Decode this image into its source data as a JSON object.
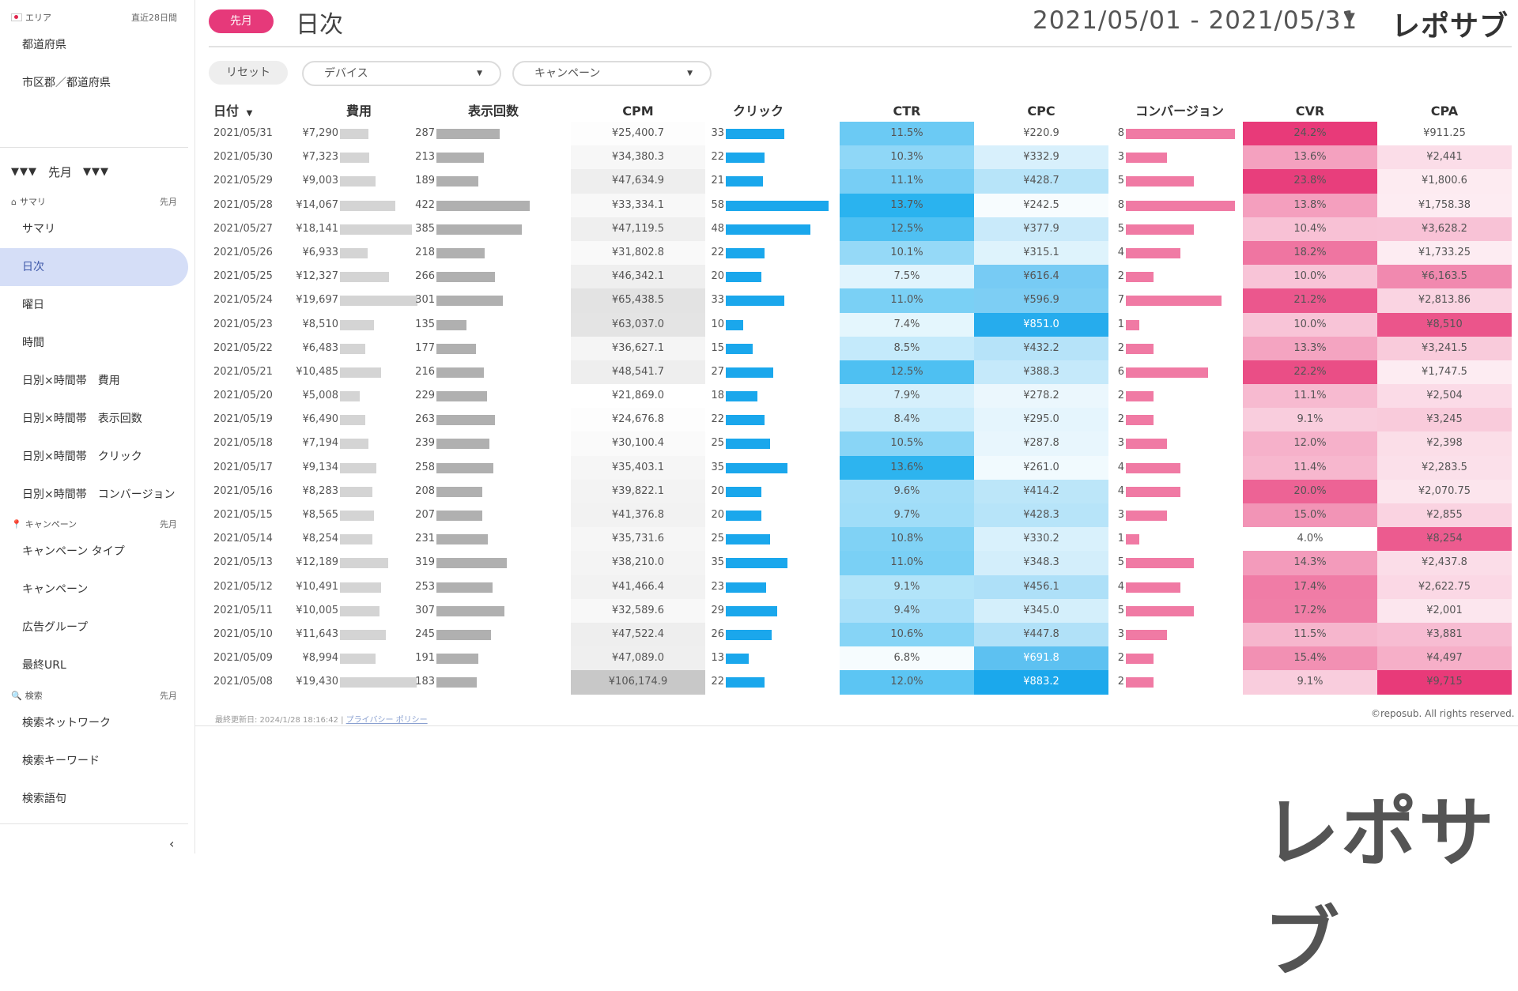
{
  "sidebar": {
    "area_header": "エリア",
    "area_period": "直近28日間",
    "area_items": [
      "都道府県",
      "市区郡／都道府県"
    ],
    "month_triangles": "▼▼▼",
    "month_label": "先月",
    "summary_header": "サマリ",
    "summary_period": "先月",
    "summary_items": [
      "サマリ",
      "日次",
      "曜日",
      "時間",
      "日別×時間帯　費用",
      "日別×時間帯　表示回数",
      "日別×時間帯　クリック",
      "日別×時間帯　コンバージョン"
    ],
    "active_item": "日次",
    "campaign_header": "キャンペーン",
    "campaign_period": "先月",
    "campaign_items": [
      "キャンペーン タイプ",
      "キャンペーン",
      "広告グループ",
      "最終URL"
    ],
    "search_header": "検索",
    "search_period": "先月",
    "search_items": [
      "検索ネットワーク",
      "検索キーワード",
      "検索語句"
    ],
    "collapse_glyph": "‹"
  },
  "header": {
    "badge": "先月",
    "title": "日次",
    "date_range": "2021/05/01 - 2021/05/31",
    "date_caret": "▼",
    "logo": "レポサブ"
  },
  "filters": {
    "reset": "リセット",
    "device": "デバイス",
    "campaign": "キャンペーン",
    "caret": "▼"
  },
  "table": {
    "columns": [
      "日付",
      "費用",
      "表示回数",
      "CPM",
      "クリック",
      "CTR",
      "CPC",
      "コンバージョン",
      "CVR",
      "CPA"
    ],
    "sort_indicator": "▼",
    "rows": [
      {
        "date": "2021/05/31",
        "cost": 7290,
        "cost_label": "¥7,290",
        "imp": 287,
        "cpm": "¥25,400.7",
        "click": 33,
        "ctr": "11.5%",
        "ctr_v": 11.5,
        "cpc": "¥220.9",
        "cpc_v": 220.9,
        "conv": 8,
        "cvr": "24.2%",
        "cvr_v": 24.2,
        "cpa": "¥911.25",
        "cpa_v": 911.25
      },
      {
        "date": "2021/05/30",
        "cost": 7323,
        "cost_label": "¥7,323",
        "imp": 213,
        "cpm": "¥34,380.3",
        "click": 22,
        "ctr": "10.3%",
        "ctr_v": 10.3,
        "cpc": "¥332.9",
        "cpc_v": 332.9,
        "conv": 3,
        "cvr": "13.6%",
        "cvr_v": 13.6,
        "cpa": "¥2,441",
        "cpa_v": 2441
      },
      {
        "date": "2021/05/29",
        "cost": 9003,
        "cost_label": "¥9,003",
        "imp": 189,
        "cpm": "¥47,634.9",
        "click": 21,
        "ctr": "11.1%",
        "ctr_v": 11.1,
        "cpc": "¥428.7",
        "cpc_v": 428.7,
        "conv": 5,
        "cvr": "23.8%",
        "cvr_v": 23.8,
        "cpa": "¥1,800.6",
        "cpa_v": 1800.6
      },
      {
        "date": "2021/05/28",
        "cost": 14067,
        "cost_label": "¥14,067",
        "imp": 422,
        "cpm": "¥33,334.1",
        "click": 58,
        "ctr": "13.7%",
        "ctr_v": 13.7,
        "cpc": "¥242.5",
        "cpc_v": 242.5,
        "conv": 8,
        "cvr": "13.8%",
        "cvr_v": 13.8,
        "cpa": "¥1,758.38",
        "cpa_v": 1758.38
      },
      {
        "date": "2021/05/27",
        "cost": 18141,
        "cost_label": "¥18,141",
        "imp": 385,
        "cpm": "¥47,119.5",
        "click": 48,
        "ctr": "12.5%",
        "ctr_v": 12.5,
        "cpc": "¥377.9",
        "cpc_v": 377.9,
        "conv": 5,
        "cvr": "10.4%",
        "cvr_v": 10.4,
        "cpa": "¥3,628.2",
        "cpa_v": 3628.2
      },
      {
        "date": "2021/05/26",
        "cost": 6933,
        "cost_label": "¥6,933",
        "imp": 218,
        "cpm": "¥31,802.8",
        "click": 22,
        "ctr": "10.1%",
        "ctr_v": 10.1,
        "cpc": "¥315.1",
        "cpc_v": 315.1,
        "conv": 4,
        "cvr": "18.2%",
        "cvr_v": 18.2,
        "cpa": "¥1,733.25",
        "cpa_v": 1733.25
      },
      {
        "date": "2021/05/25",
        "cost": 12327,
        "cost_label": "¥12,327",
        "imp": 266,
        "cpm": "¥46,342.1",
        "click": 20,
        "ctr": "7.5%",
        "ctr_v": 7.5,
        "cpc": "¥616.4",
        "cpc_v": 616.4,
        "conv": 2,
        "cvr": "10.0%",
        "cvr_v": 10.0,
        "cpa": "¥6,163.5",
        "cpa_v": 6163.5
      },
      {
        "date": "2021/05/24",
        "cost": 19697,
        "cost_label": "¥19,697",
        "imp": 301,
        "cpm": "¥65,438.5",
        "click": 33,
        "ctr": "11.0%",
        "ctr_v": 11.0,
        "cpc": "¥596.9",
        "cpc_v": 596.9,
        "conv": 7,
        "cvr": "21.2%",
        "cvr_v": 21.2,
        "cpa": "¥2,813.86",
        "cpa_v": 2813.86
      },
      {
        "date": "2021/05/23",
        "cost": 8510,
        "cost_label": "¥8,510",
        "imp": 135,
        "cpm": "¥63,037.0",
        "click": 10,
        "ctr": "7.4%",
        "ctr_v": 7.4,
        "cpc": "¥851.0",
        "cpc_v": 851.0,
        "conv": 1,
        "cvr": "10.0%",
        "cvr_v": 10.0,
        "cpa": "¥8,510",
        "cpa_v": 8510
      },
      {
        "date": "2021/05/22",
        "cost": 6483,
        "cost_label": "¥6,483",
        "imp": 177,
        "cpm": "¥36,627.1",
        "click": 15,
        "ctr": "8.5%",
        "ctr_v": 8.5,
        "cpc": "¥432.2",
        "cpc_v": 432.2,
        "conv": 2,
        "cvr": "13.3%",
        "cvr_v": 13.3,
        "cpa": "¥3,241.5",
        "cpa_v": 3241.5
      },
      {
        "date": "2021/05/21",
        "cost": 10485,
        "cost_label": "¥10,485",
        "imp": 216,
        "cpm": "¥48,541.7",
        "click": 27,
        "ctr": "12.5%",
        "ctr_v": 12.5,
        "cpc": "¥388.3",
        "cpc_v": 388.3,
        "conv": 6,
        "cvr": "22.2%",
        "cvr_v": 22.2,
        "cpa": "¥1,747.5",
        "cpa_v": 1747.5
      },
      {
        "date": "2021/05/20",
        "cost": 5008,
        "cost_label": "¥5,008",
        "imp": 229,
        "cpm": "¥21,869.0",
        "click": 18,
        "ctr": "7.9%",
        "ctr_v": 7.9,
        "cpc": "¥278.2",
        "cpc_v": 278.2,
        "conv": 2,
        "cvr": "11.1%",
        "cvr_v": 11.1,
        "cpa": "¥2,504",
        "cpa_v": 2504
      },
      {
        "date": "2021/05/19",
        "cost": 6490,
        "cost_label": "¥6,490",
        "imp": 263,
        "cpm": "¥24,676.8",
        "click": 22,
        "ctr": "8.4%",
        "ctr_v": 8.4,
        "cpc": "¥295.0",
        "cpc_v": 295.0,
        "conv": 2,
        "cvr": "9.1%",
        "cvr_v": 9.1,
        "cpa": "¥3,245",
        "cpa_v": 3245
      },
      {
        "date": "2021/05/18",
        "cost": 7194,
        "cost_label": "¥7,194",
        "imp": 239,
        "cpm": "¥30,100.4",
        "click": 25,
        "ctr": "10.5%",
        "ctr_v": 10.5,
        "cpc": "¥287.8",
        "cpc_v": 287.8,
        "conv": 3,
        "cvr": "12.0%",
        "cvr_v": 12.0,
        "cpa": "¥2,398",
        "cpa_v": 2398
      },
      {
        "date": "2021/05/17",
        "cost": 9134,
        "cost_label": "¥9,134",
        "imp": 258,
        "cpm": "¥35,403.1",
        "click": 35,
        "ctr": "13.6%",
        "ctr_v": 13.6,
        "cpc": "¥261.0",
        "cpc_v": 261.0,
        "conv": 4,
        "cvr": "11.4%",
        "cvr_v": 11.4,
        "cpa": "¥2,283.5",
        "cpa_v": 2283.5
      },
      {
        "date": "2021/05/16",
        "cost": 8283,
        "cost_label": "¥8,283",
        "imp": 208,
        "cpm": "¥39,822.1",
        "click": 20,
        "ctr": "9.6%",
        "ctr_v": 9.6,
        "cpc": "¥414.2",
        "cpc_v": 414.2,
        "conv": 4,
        "cvr": "20.0%",
        "cvr_v": 20.0,
        "cpa": "¥2,070.75",
        "cpa_v": 2070.75
      },
      {
        "date": "2021/05/15",
        "cost": 8565,
        "cost_label": "¥8,565",
        "imp": 207,
        "cpm": "¥41,376.8",
        "click": 20,
        "ctr": "9.7%",
        "ctr_v": 9.7,
        "cpc": "¥428.3",
        "cpc_v": 428.3,
        "conv": 3,
        "cvr": "15.0%",
        "cvr_v": 15.0,
        "cpa": "¥2,855",
        "cpa_v": 2855
      },
      {
        "date": "2021/05/14",
        "cost": 8254,
        "cost_label": "¥8,254",
        "imp": 231,
        "cpm": "¥35,731.6",
        "click": 25,
        "ctr": "10.8%",
        "ctr_v": 10.8,
        "cpc": "¥330.2",
        "cpc_v": 330.2,
        "conv": 1,
        "cvr": "4.0%",
        "cvr_v": 4.0,
        "cpa": "¥8,254",
        "cpa_v": 8254
      },
      {
        "date": "2021/05/13",
        "cost": 12189,
        "cost_label": "¥12,189",
        "imp": 319,
        "cpm": "¥38,210.0",
        "click": 35,
        "ctr": "11.0%",
        "ctr_v": 11.0,
        "cpc": "¥348.3",
        "cpc_v": 348.3,
        "conv": 5,
        "cvr": "14.3%",
        "cvr_v": 14.3,
        "cpa": "¥2,437.8",
        "cpa_v": 2437.8
      },
      {
        "date": "2021/05/12",
        "cost": 10491,
        "cost_label": "¥10,491",
        "imp": 253,
        "cpm": "¥41,466.4",
        "click": 23,
        "ctr": "9.1%",
        "ctr_v": 9.1,
        "cpc": "¥456.1",
        "cpc_v": 456.1,
        "conv": 4,
        "cvr": "17.4%",
        "cvr_v": 17.4,
        "cpa": "¥2,622.75",
        "cpa_v": 2622.75
      },
      {
        "date": "2021/05/11",
        "cost": 10005,
        "cost_label": "¥10,005",
        "imp": 307,
        "cpm": "¥32,589.6",
        "click": 29,
        "ctr": "9.4%",
        "ctr_v": 9.4,
        "cpc": "¥345.0",
        "cpc_v": 345.0,
        "conv": 5,
        "cvr": "17.2%",
        "cvr_v": 17.2,
        "cpa": "¥2,001",
        "cpa_v": 2001
      },
      {
        "date": "2021/05/10",
        "cost": 11643,
        "cost_label": "¥11,643",
        "imp": 245,
        "cpm": "¥47,522.4",
        "click": 26,
        "ctr": "10.6%",
        "ctr_v": 10.6,
        "cpc": "¥447.8",
        "cpc_v": 447.8,
        "conv": 3,
        "cvr": "11.5%",
        "cvr_v": 11.5,
        "cpa": "¥3,881",
        "cpa_v": 3881
      },
      {
        "date": "2021/05/09",
        "cost": 8994,
        "cost_label": "¥8,994",
        "imp": 191,
        "cpm": "¥47,089.0",
        "click": 13,
        "ctr": "6.8%",
        "ctr_v": 6.8,
        "cpc": "¥691.8",
        "cpc_v": 691.8,
        "conv": 2,
        "cvr": "15.4%",
        "cvr_v": 15.4,
        "cpa": "¥4,497",
        "cpa_v": 4497
      },
      {
        "date": "2021/05/08",
        "cost": 19430,
        "cost_label": "¥19,430",
        "imp": 183,
        "cpm": "¥106,174.9",
        "click": 22,
        "ctr": "12.0%",
        "ctr_v": 12.0,
        "cpc": "¥883.2",
        "cpc_v": 883.2,
        "conv": 2,
        "cvr": "9.1%",
        "cvr_v": 9.1,
        "cpa": "¥9,715",
        "cpa_v": 9715
      }
    ]
  },
  "footer": {
    "updated": "最終更新日: 2024/1/28 18:16:42",
    "separator": "|",
    "privacy": "プライバシー ポリシー",
    "copyright": "©reposub. All rights reserved."
  },
  "brand_logo": "レポサブ",
  "colors": {
    "accent_pink": "#e6397a",
    "sidebar_active": "#d5def7",
    "cost_bar": "#d4d4d4",
    "imp_bar": "#b0b0b0",
    "click_bar": "#1aa7ec",
    "conv_bar": "#f07aa4"
  }
}
